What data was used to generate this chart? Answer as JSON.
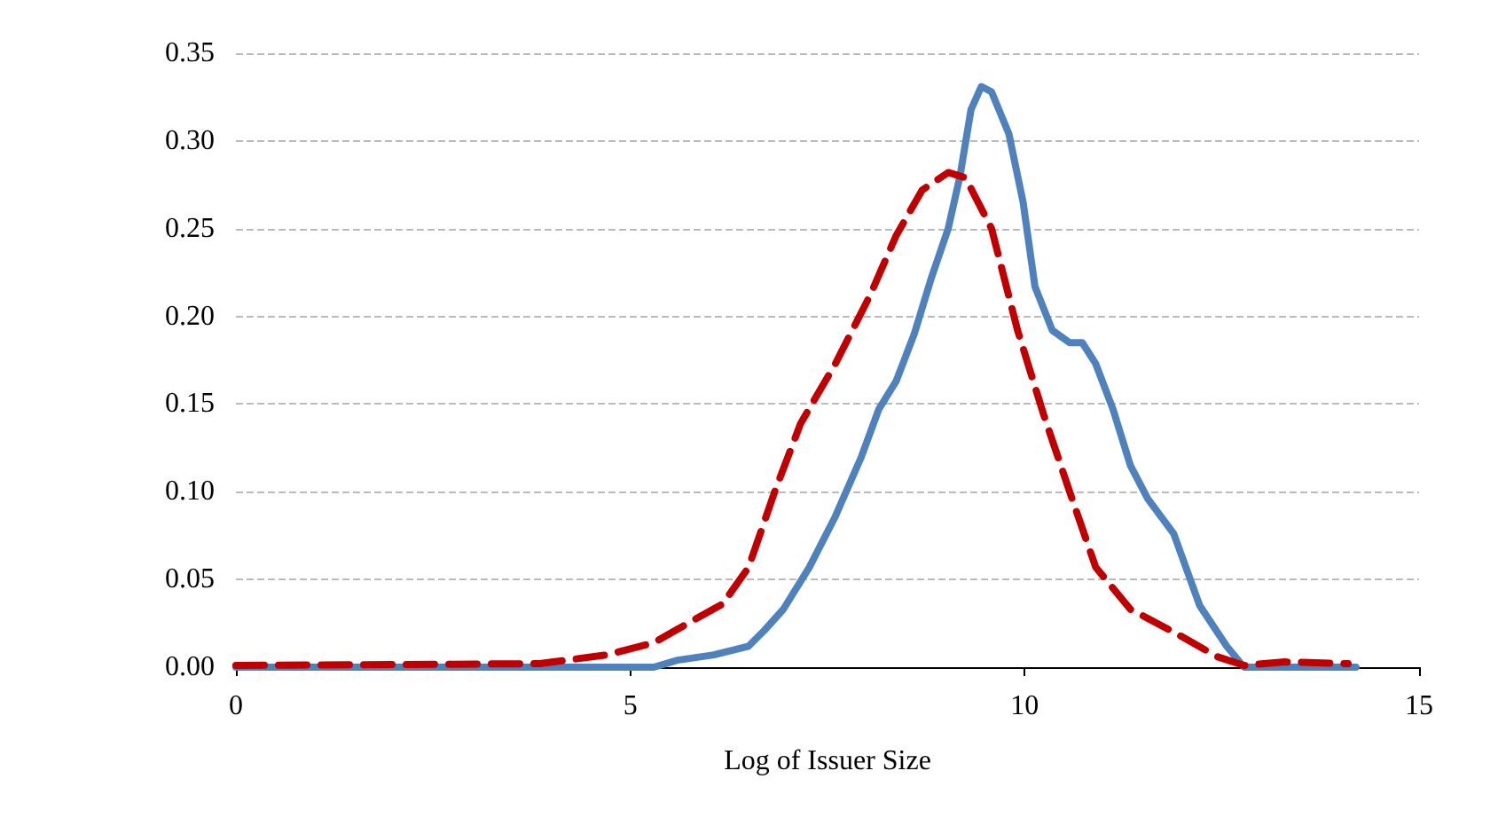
{
  "chart_data": {
    "type": "line",
    "xlabel": "Log of Issuer Size",
    "xlim": [
      0,
      15
    ],
    "xticks": [
      0,
      5,
      10,
      15
    ],
    "ylim": [
      0,
      0.35
    ],
    "yticks": [
      {
        "value": 0,
        "label": "0.00"
      },
      {
        "value": 0.05,
        "label": "0.05"
      },
      {
        "value": 0.1,
        "label": "0.10"
      },
      {
        "value": 0.15,
        "label": "0.15"
      },
      {
        "value": 0.2,
        "label": "0.20"
      },
      {
        "value": 0.25,
        "label": "0.25"
      },
      {
        "value": 0.3,
        "label": "0.30"
      },
      {
        "value": 0.35,
        "label": "0.35"
      }
    ],
    "grid": "y",
    "marker": "none",
    "series": [
      {
        "color": "#4f81bd",
        "line_style": "solid",
        "x": [
          0,
          5.3,
          5.6,
          6.06,
          6.5,
          6.7,
          6.94,
          7.27,
          7.6,
          7.93,
          8.15,
          8.37,
          8.6,
          8.81,
          9.03,
          9.18,
          9.32,
          9.45,
          9.58,
          9.8,
          9.98,
          10.13,
          10.35,
          10.57,
          10.73,
          10.9,
          11.12,
          11.34,
          11.56,
          11.89,
          12.22,
          12.56,
          12.78,
          14.2
        ],
        "values": [
          0,
          0,
          0.004,
          0.007,
          0.012,
          0.021,
          0.033,
          0.057,
          0.086,
          0.12,
          0.147,
          0.163,
          0.19,
          0.221,
          0.25,
          0.28,
          0.318,
          0.331,
          0.328,
          0.304,
          0.265,
          0.217,
          0.192,
          0.185,
          0.185,
          0.173,
          0.147,
          0.115,
          0.096,
          0.076,
          0.035,
          0.012,
          0,
          0
        ]
      },
      {
        "color": "#c00000",
        "line_style": "dashed",
        "x": [
          0,
          3.85,
          4.7,
          5.3,
          5.73,
          6.17,
          6.5,
          6.83,
          7.16,
          7.6,
          8.04,
          8.37,
          8.7,
          9.03,
          9.25,
          9.58,
          9.91,
          10.24,
          10.57,
          10.9,
          11.34,
          11.89,
          12.44,
          12.78,
          13.3,
          14.1
        ],
        "values": [
          0.001,
          0.002,
          0.007,
          0.014,
          0.025,
          0.036,
          0.057,
          0.1,
          0.139,
          0.173,
          0.212,
          0.246,
          0.272,
          0.282,
          0.279,
          0.25,
          0.192,
          0.144,
          0.1,
          0.057,
          0.033,
          0.02,
          0.006,
          0.001,
          0.003,
          0.002
        ]
      }
    ]
  }
}
